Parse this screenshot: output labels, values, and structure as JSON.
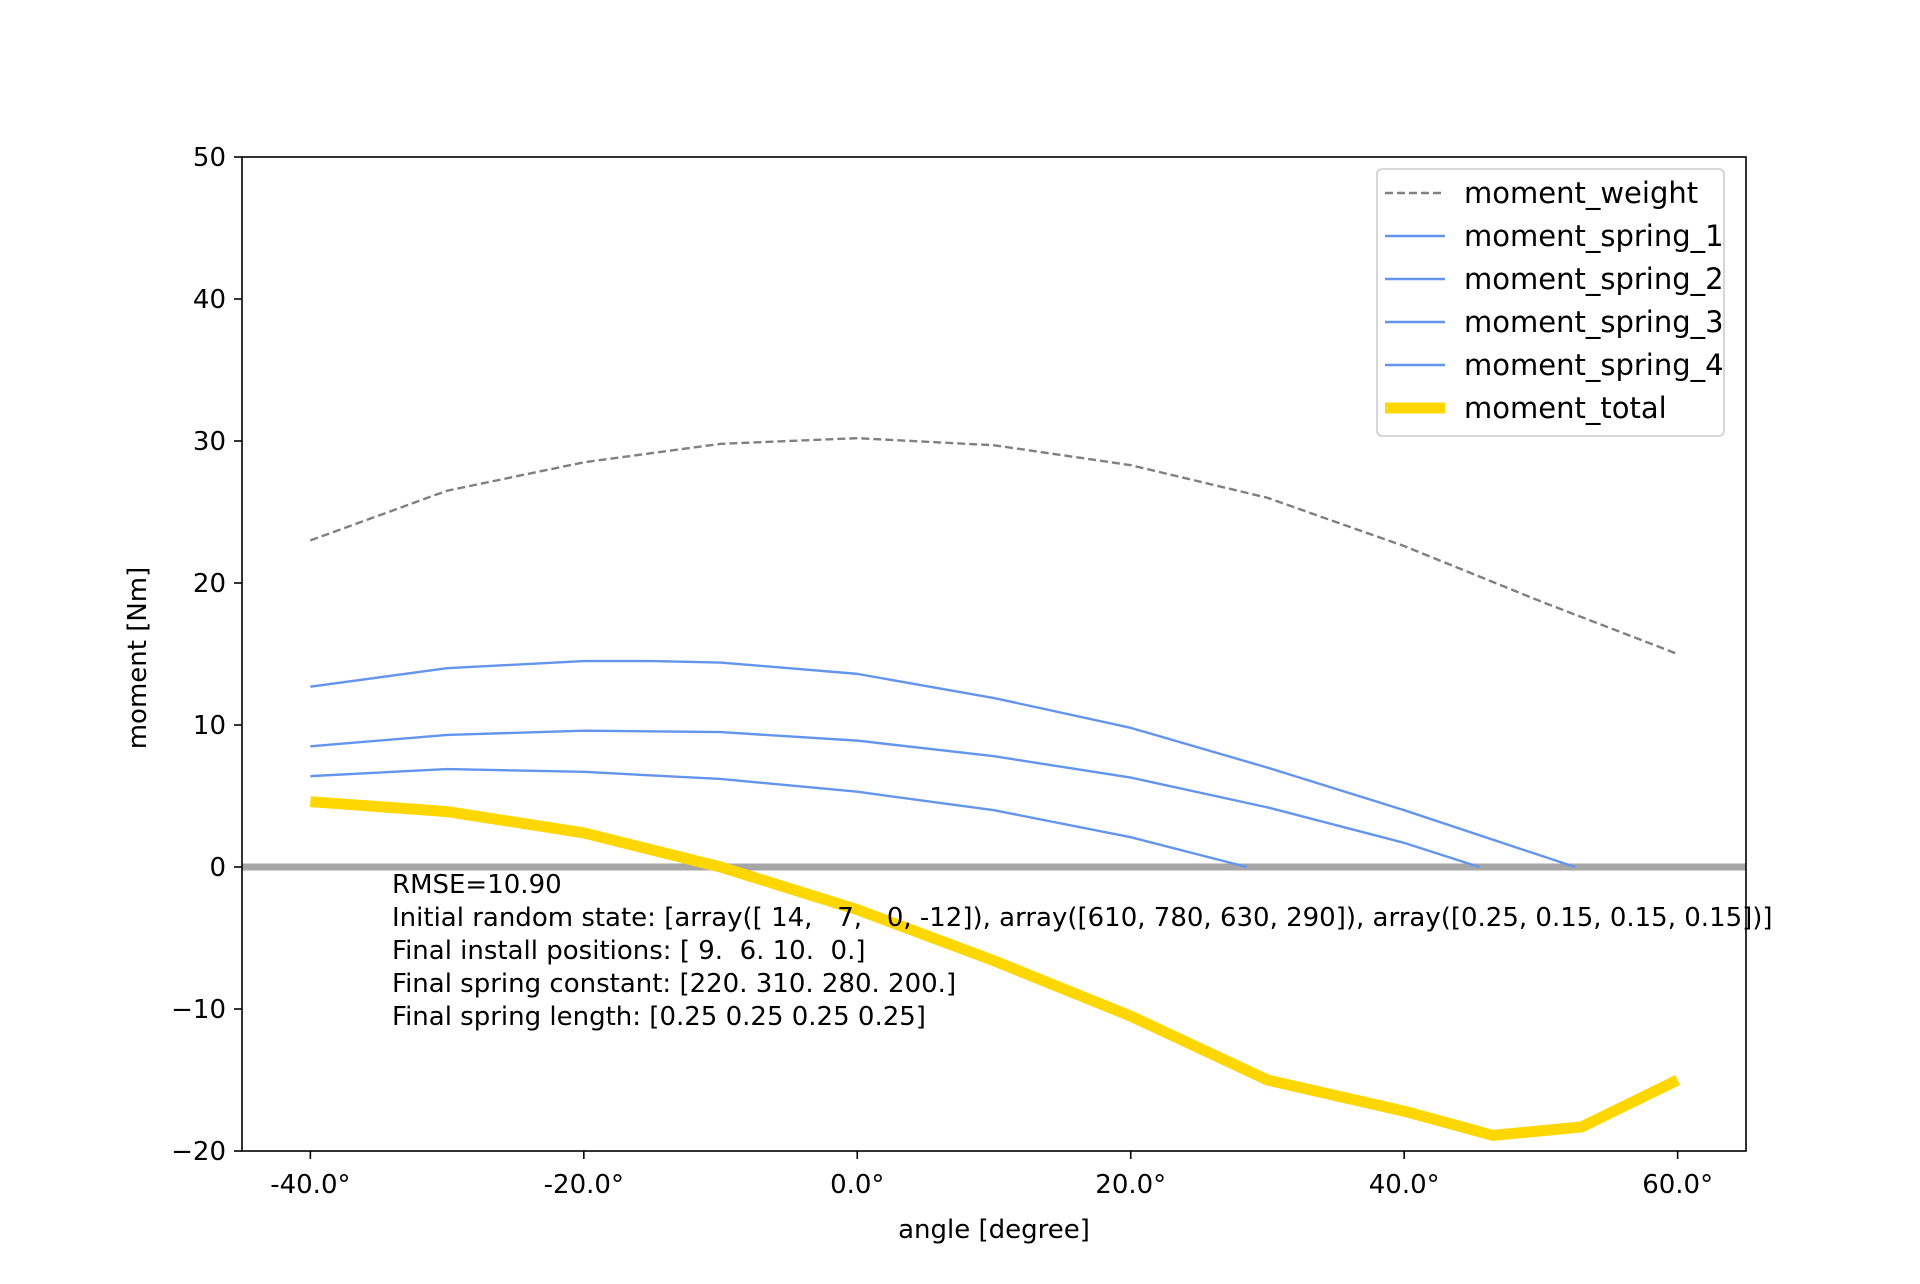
{
  "chart_data": {
    "type": "line",
    "title": "",
    "xlabel": "angle [degree]",
    "ylabel": "moment [Nm]",
    "xlim": [
      -45,
      65
    ],
    "ylim": [
      -20,
      50
    ],
    "x_tick_values": [
      -40,
      -20,
      0,
      20,
      40,
      60
    ],
    "x_tick_labels": [
      "-40.0°",
      "-20.0°",
      "0.0°",
      "20.0°",
      "40.0°",
      "60.0°"
    ],
    "y_tick_values": [
      -20,
      -10,
      0,
      10,
      20,
      30,
      40,
      50
    ],
    "y_tick_labels": [
      "−20",
      "−10",
      "0",
      "10",
      "20",
      "30",
      "40",
      "50"
    ],
    "grid": false,
    "legend_position": "top-right",
    "zero_line_color": "#a6a6a6",
    "series": [
      {
        "name": "moment_weight",
        "color": "#808080",
        "style": "dashed",
        "x": [
          -40,
          -30,
          -20,
          -10,
          0,
          10,
          20,
          30,
          40,
          50,
          60
        ],
        "y": [
          23.0,
          26.5,
          28.5,
          29.8,
          30.2,
          29.7,
          28.3,
          26.0,
          22.6,
          18.7,
          15.0
        ]
      },
      {
        "name": "moment_spring_1",
        "color": "#6495ed",
        "style": "solid",
        "x": [
          -40,
          -30,
          -20,
          -15,
          -10,
          0,
          10,
          20,
          30,
          40,
          52.5
        ],
        "y": [
          12.7,
          14.0,
          14.5,
          14.5,
          14.4,
          13.6,
          11.9,
          9.8,
          7.0,
          4.0,
          0.0
        ]
      },
      {
        "name": "moment_spring_2",
        "color": "#6495ed",
        "style": "solid",
        "x": [
          -40,
          -30,
          -20,
          -10,
          0,
          10,
          20,
          30,
          40,
          45.5
        ],
        "y": [
          8.5,
          9.3,
          9.6,
          9.5,
          8.9,
          7.8,
          6.3,
          4.2,
          1.7,
          0.0
        ]
      },
      {
        "name": "moment_spring_3",
        "color": "#6495ed",
        "style": "solid",
        "x": [
          -40,
          -30,
          -20,
          -10,
          0,
          10,
          20,
          28.5
        ],
        "y": [
          6.4,
          6.9,
          6.7,
          6.2,
          5.3,
          4.0,
          2.1,
          0.0
        ]
      },
      {
        "name": "moment_spring_4",
        "color": "#6495ed",
        "style": "solid",
        "x": [],
        "y": []
      },
      {
        "name": "moment_total",
        "color": "#ffd700",
        "style": "thick",
        "x": [
          -40,
          -30,
          -20,
          -10,
          0,
          10,
          20,
          30,
          40,
          46.5,
          53,
          60
        ],
        "y": [
          4.6,
          3.9,
          2.4,
          0.0,
          -3.0,
          -6.6,
          -10.5,
          -15.0,
          -17.2,
          -18.9,
          -18.3,
          -15.0
        ]
      }
    ],
    "annotations": [
      "RMSE=10.90",
      "Initial random state: [array([ 14,   7,   0, -12]), array([610, 780, 630, 290]), array([0.25, 0.15, 0.15, 0.15])]",
      "Final install positions: [ 9.  6. 10.  0.]",
      "Final spring constant: [220. 310. 280. 200.]",
      "Final spring length: [0.25 0.25 0.25 0.25]"
    ]
  }
}
